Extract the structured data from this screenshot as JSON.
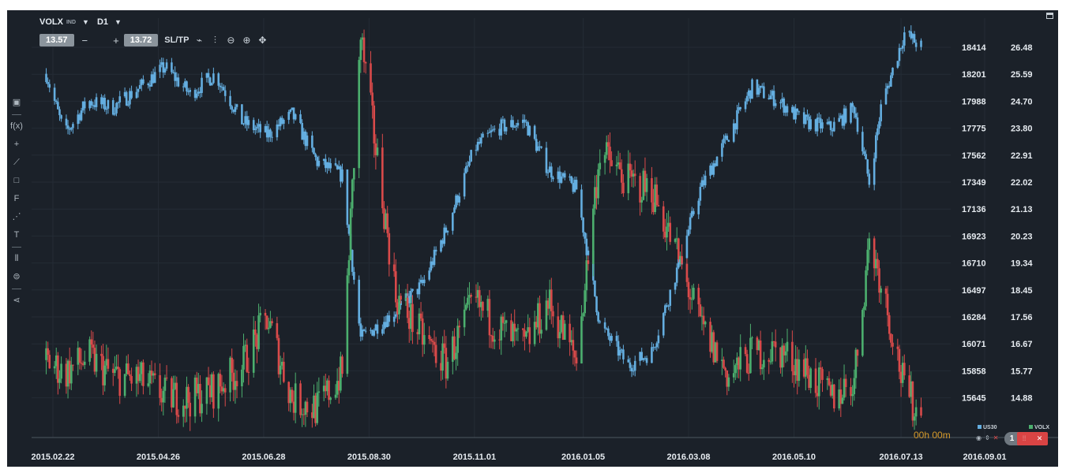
{
  "header": {
    "symbol": "VOLX",
    "symbol_type": "IND",
    "timeframe": "D1",
    "bid": "13.57",
    "minus": "−",
    "plus": "+",
    "ask": "13.72",
    "sltp_label": "SL/TP",
    "icons": [
      "line-chart-icon",
      "candles-icon",
      "zoom-out-icon",
      "zoom-in-icon",
      "move-icon"
    ]
  },
  "left_toolbar": [
    "layout-icon",
    "indicator-icon",
    "crosshair-icon",
    "line-tool-icon",
    "rectangle-icon",
    "fibonacci-icon",
    "pitchfork-icon",
    "text-tool-icon",
    "bars-icon",
    "layers-icon",
    "share-icon"
  ],
  "left_toolbar_glyphs": [
    "▣",
    "f(x)",
    "+",
    "⟋",
    "□",
    "F",
    "⋰",
    "T",
    "⫴",
    "⊜",
    "⋖"
  ],
  "status": {
    "countdown": "00h 00m",
    "legend_us30": "US30",
    "legend_volx": "VOLX",
    "tag_number": "1"
  },
  "colors": {
    "background": "#1b2129",
    "us30": "#64aee0",
    "up": "#4caf6e",
    "down": "#d94a4a"
  },
  "chart_data": {
    "type": "candlestick overlay",
    "x_tick_labels": [
      "2015.02.22",
      "2015.04.26",
      "2015.06.28",
      "2015.08.30",
      "2015.11.01",
      "2016.01.05",
      "2016.03.08",
      "2016.05.10",
      "2016.07.13",
      "2016.09.01"
    ],
    "left_axis": {
      "label": "US30",
      "ticks": [
        "18414",
        "18201",
        "17988",
        "17775",
        "17562",
        "17349",
        "17136",
        "16923",
        "16710",
        "16497",
        "16284",
        "16071",
        "15858",
        "15645"
      ],
      "range": [
        15470,
        18560
      ]
    },
    "right_axis": {
      "label": "VOLX",
      "ticks": [
        "26.48",
        "25.59",
        "24.70",
        "23.80",
        "22.91",
        "22.02",
        "21.13",
        "20.23",
        "19.34",
        "18.45",
        "17.56",
        "16.67",
        "15.77",
        "14.88"
      ],
      "range": [
        14.1,
        27.1
      ]
    },
    "series": [
      {
        "name": "US30",
        "style": "candlestick",
        "color": "#64aee0",
        "dates": [
          "2015-02-18",
          "2015-03-01",
          "2015-03-15",
          "2015-03-30",
          "2015-04-15",
          "2015-04-30",
          "2015-05-15",
          "2015-05-30",
          "2015-06-15",
          "2015-06-30",
          "2015-07-15",
          "2015-07-30",
          "2015-08-14",
          "2015-08-25",
          "2015-09-15",
          "2015-10-01",
          "2015-10-15",
          "2015-11-01",
          "2015-11-15",
          "2015-12-01",
          "2015-12-15",
          "2016-01-01",
          "2016-01-15",
          "2016-02-01",
          "2016-02-15",
          "2016-03-01",
          "2016-03-15",
          "2016-04-01",
          "2016-04-15",
          "2016-05-01",
          "2016-05-15",
          "2016-06-01",
          "2016-06-15",
          "2016-06-24",
          "2016-07-01",
          "2016-07-15",
          "2016-07-25"
        ],
        "values": [
          18150,
          17700,
          17950,
          17900,
          18050,
          18200,
          18000,
          18150,
          17800,
          17700,
          17850,
          17500,
          17400,
          16200,
          16400,
          16600,
          17000,
          17600,
          17750,
          17800,
          17450,
          17300,
          16300,
          16000,
          16100,
          16700,
          17300,
          17700,
          18050,
          17950,
          17800,
          17750,
          17900,
          17350,
          17900,
          18450,
          18350
        ]
      },
      {
        "name": "VOLX",
        "style": "candlestick",
        "up_color": "#4caf6e",
        "down_color": "#d94a4a",
        "dates": [
          "2015-02-18",
          "2015-03-01",
          "2015-03-15",
          "2015-03-30",
          "2015-04-15",
          "2015-04-30",
          "2015-05-15",
          "2015-05-30",
          "2015-06-15",
          "2015-06-30",
          "2015-07-15",
          "2015-07-30",
          "2015-08-14",
          "2015-08-25",
          "2015-09-15",
          "2015-10-01",
          "2015-10-15",
          "2015-11-01",
          "2015-11-15",
          "2015-12-01",
          "2015-12-15",
          "2016-01-01",
          "2016-01-15",
          "2016-02-01",
          "2016-02-15",
          "2016-03-01",
          "2016-03-15",
          "2016-04-01",
          "2016-04-15",
          "2016-05-01",
          "2016-05-15",
          "2016-06-01",
          "2016-06-15",
          "2016-06-24",
          "2016-07-01",
          "2016-07-15",
          "2016-07-25"
        ],
        "values": [
          16.5,
          16.1,
          16.6,
          16.0,
          15.9,
          15.4,
          15.3,
          15.6,
          16.3,
          17.8,
          15.3,
          15.0,
          16.1,
          26.5,
          18.5,
          17.2,
          16.4,
          18.3,
          17.5,
          16.9,
          18.3,
          16.5,
          23.0,
          22.0,
          21.8,
          19.8,
          17.6,
          16.0,
          16.7,
          16.8,
          16.3,
          15.3,
          15.9,
          20.2,
          19.0,
          15.6,
          14.7
        ]
      }
    ],
    "grid": true,
    "legend_position": "bottom-right"
  }
}
